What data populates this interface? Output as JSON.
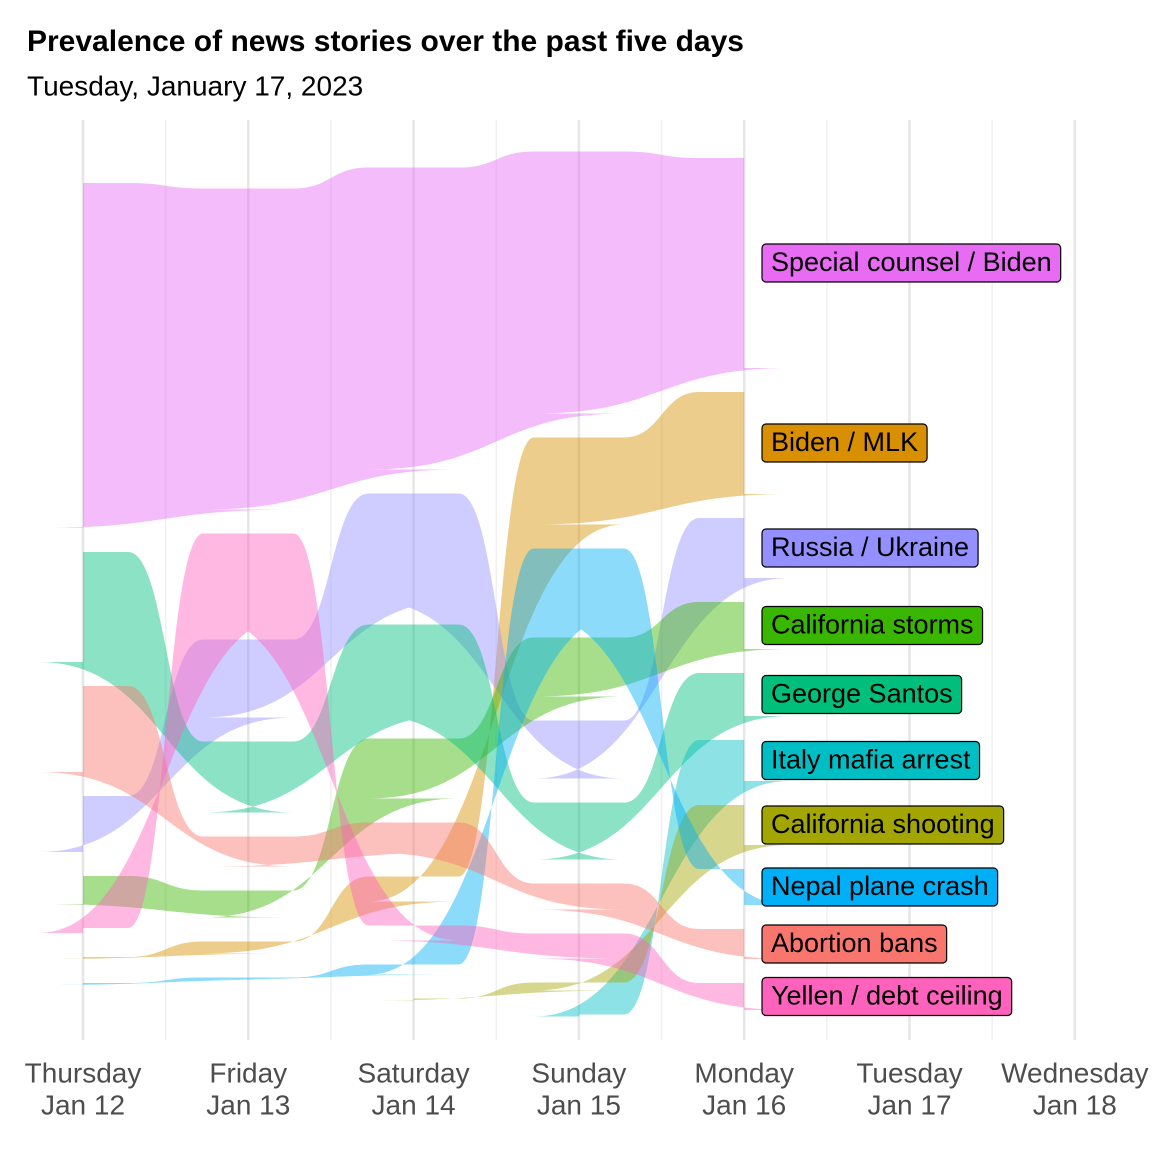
{
  "chart_data": {
    "type": "alluvial",
    "title": "Prevalence of news stories over the past five days",
    "subtitle": "Tuesday, January 17, 2023",
    "categories": [
      [
        "Thursday",
        "Jan 12"
      ],
      [
        "Friday",
        "Jan 13"
      ],
      [
        "Saturday",
        "Jan 14"
      ],
      [
        "Sunday",
        "Jan 15"
      ],
      [
        "Monday",
        "Jan 16"
      ],
      [
        "Tuesday",
        "Jan 17"
      ],
      [
        "Wednesday",
        "Jan 18"
      ]
    ],
    "grid": true,
    "series": [
      {
        "name": "Special counsel / Biden",
        "color": "#e76bf3",
        "values": [
          345,
          321,
          302,
          262,
          210,
          null,
          null
        ]
      },
      {
        "name": "Biden / MLK",
        "color": "#d89000",
        "values": [
          2,
          12,
          25,
          87,
          102,
          null,
          null
        ]
      },
      {
        "name": "Russia / Ukraine",
        "color": "#9590ff",
        "values": [
          56,
          78,
          107,
          58,
          60,
          null,
          null
        ]
      },
      {
        "name": "California storms",
        "color": "#39b600",
        "values": [
          28,
          27,
          60,
          59,
          47,
          null,
          null
        ]
      },
      {
        "name": "George Santos",
        "color": "#00bf7d",
        "values": [
          110,
          71,
          90,
          57,
          43,
          null,
          null
        ]
      },
      {
        "name": "Italy mafia arrest",
        "color": "#00bfc4",
        "values": [
          null,
          null,
          null,
          2,
          41,
          null,
          null
        ]
      },
      {
        "name": "California shooting",
        "color": "#a3a500",
        "values": [
          null,
          null,
          2,
          8,
          40,
          null,
          null
        ]
      },
      {
        "name": "Nepal plane crash",
        "color": "#00b0f6",
        "values": [
          2,
          2,
          10,
          65,
          36,
          null,
          null
        ]
      },
      {
        "name": "Abortion bans",
        "color": "#f8766d",
        "values": [
          86,
          30,
          30,
          26,
          30,
          null,
          null
        ]
      },
      {
        "name": "Yellen / debt ceiling",
        "color": "#ff62bc",
        "values": [
          5,
          82,
          15,
          25,
          27,
          null,
          null
        ]
      }
    ]
  }
}
